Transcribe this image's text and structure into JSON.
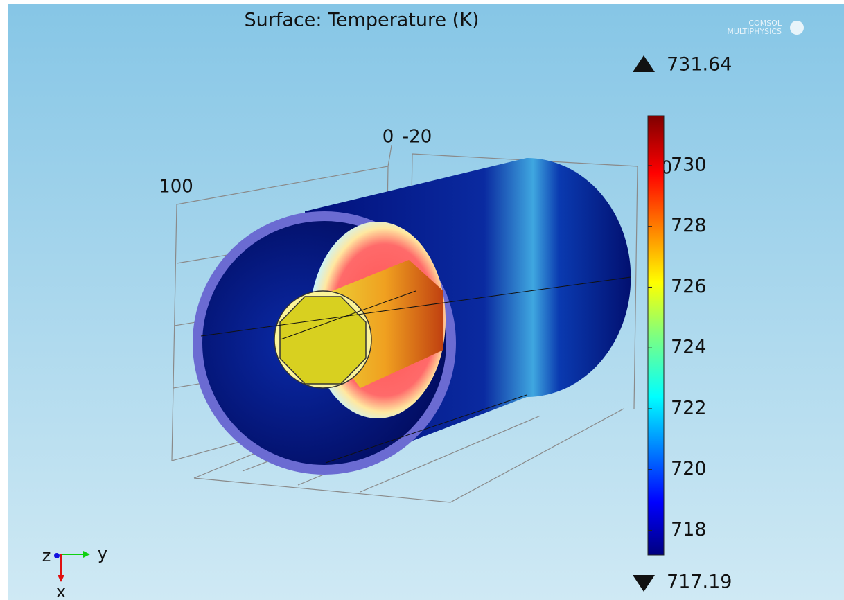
{
  "title": "Surface: Temperature (K)",
  "logo": {
    "line1": "COMSOL",
    "line2": "MULTIPHYSICS"
  },
  "axis_labels": [
    "100",
    "0",
    "-20",
    "0"
  ],
  "colorbar": {
    "max": 731.64,
    "min": 717.19,
    "ticks": [
      718,
      720,
      722,
      724,
      726,
      728,
      730
    ]
  },
  "triad": {
    "z": "z",
    "y": "y",
    "x": "x"
  }
}
